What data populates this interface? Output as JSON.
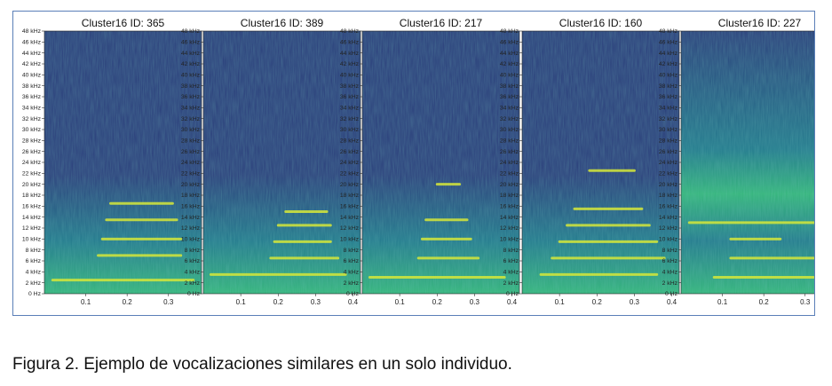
{
  "figure": {
    "caption": "Figura 2. Ejemplo de vocalizaciones similares en un solo individuo."
  },
  "colors": {
    "background_low": "#2a3d7a",
    "mid": "#22798c",
    "high": "#34b57a",
    "harmonic": "#d6e83a",
    "frame_border": "#5b7fb8"
  },
  "chart_data": [
    {
      "type": "heatmap",
      "title": "Cluster16 ID: 365",
      "y_ticks": [
        "0 Hz",
        "2 kHz",
        "4 kHz",
        "6 kHz",
        "8 kHz",
        "10 kHz",
        "12 kHz",
        "14 kHz",
        "16 kHz",
        "18 kHz",
        "20 kHz",
        "22 kHz",
        "24 kHz",
        "26 kHz",
        "28 kHz",
        "30 kHz",
        "32 kHz",
        "34 kHz",
        "36 kHz",
        "38 kHz",
        "40 kHz",
        "42 kHz",
        "44 kHz",
        "46 kHz",
        "48 kHz"
      ],
      "x_ticks": [
        "0.1",
        "0.2",
        "0.3"
      ],
      "xlim": [
        0,
        0.38
      ],
      "ylim_khz": [
        0,
        48
      ],
      "harmonics": [
        {
          "freq_khz": 2.5,
          "t_start": 0.02,
          "t_end": 0.36
        },
        {
          "freq_khz": 7.0,
          "t_start": 0.13,
          "t_end": 0.33
        },
        {
          "freq_khz": 10.0,
          "t_start": 0.14,
          "t_end": 0.33
        },
        {
          "freq_khz": 13.5,
          "t_start": 0.15,
          "t_end": 0.32
        },
        {
          "freq_khz": 16.5,
          "t_start": 0.16,
          "t_end": 0.31
        }
      ]
    },
    {
      "type": "heatmap",
      "title": "Cluster16 ID: 389",
      "y_ticks": [
        "0 Hz",
        "2 kHz",
        "4 kHz",
        "6 kHz",
        "8 kHz",
        "10 kHz",
        "12 kHz",
        "14 kHz",
        "16 kHz",
        "18 kHz",
        "20 kHz",
        "22 kHz",
        "24 kHz",
        "26 kHz",
        "28 kHz",
        "30 kHz",
        "32 kHz",
        "34 kHz",
        "36 kHz",
        "38 kHz",
        "40 kHz",
        "42 kHz",
        "44 kHz",
        "46 kHz",
        "48 kHz"
      ],
      "x_ticks": [
        "0.1",
        "0.2",
        "0.3",
        "0.4"
      ],
      "xlim": [
        0,
        0.42
      ],
      "ylim_khz": [
        0,
        48
      ],
      "harmonics": [
        {
          "freq_khz": 3.5,
          "t_start": 0.02,
          "t_end": 0.38
        },
        {
          "freq_khz": 6.5,
          "t_start": 0.18,
          "t_end": 0.36
        },
        {
          "freq_khz": 9.5,
          "t_start": 0.19,
          "t_end": 0.34
        },
        {
          "freq_khz": 12.5,
          "t_start": 0.2,
          "t_end": 0.34
        },
        {
          "freq_khz": 15.0,
          "t_start": 0.22,
          "t_end": 0.33
        }
      ]
    },
    {
      "type": "heatmap",
      "title": "Cluster16 ID: 217",
      "y_ticks": [
        "0 Hz",
        "2 kHz",
        "4 kHz",
        "6 kHz",
        "8 kHz",
        "10 kHz",
        "12 kHz",
        "14 kHz",
        "16 kHz",
        "18 kHz",
        "20 kHz",
        "22 kHz",
        "24 kHz",
        "26 kHz",
        "28 kHz",
        "30 kHz",
        "32 kHz",
        "34 kHz",
        "36 kHz",
        "38 kHz",
        "40 kHz",
        "42 kHz",
        "44 kHz",
        "46 kHz",
        "48 kHz"
      ],
      "x_ticks": [
        "0.1",
        "0.2",
        "0.3",
        "0.4"
      ],
      "xlim": [
        0,
        0.42
      ],
      "ylim_khz": [
        0,
        48
      ],
      "harmonics": [
        {
          "freq_khz": 3.0,
          "t_start": 0.02,
          "t_end": 0.38
        },
        {
          "freq_khz": 6.5,
          "t_start": 0.15,
          "t_end": 0.31
        },
        {
          "freq_khz": 10.0,
          "t_start": 0.16,
          "t_end": 0.29
        },
        {
          "freq_khz": 13.5,
          "t_start": 0.17,
          "t_end": 0.28
        },
        {
          "freq_khz": 20.0,
          "t_start": 0.2,
          "t_end": 0.26
        }
      ]
    },
    {
      "type": "heatmap",
      "title": "Cluster16 ID: 160",
      "y_ticks": [
        "0 Hz",
        "2 kHz",
        "4 kHz",
        "6 kHz",
        "8 kHz",
        "10 kHz",
        "12 kHz",
        "14 kHz",
        "16 kHz",
        "18 kHz",
        "20 kHz",
        "22 kHz",
        "24 kHz",
        "26 kHz",
        "28 kHz",
        "30 kHz",
        "32 kHz",
        "34 kHz",
        "36 kHz",
        "38 kHz",
        "40 kHz",
        "42 kHz",
        "44 kHz",
        "46 kHz",
        "48 kHz"
      ],
      "x_ticks": [
        "0.1",
        "0.2",
        "0.3",
        "0.4"
      ],
      "xlim": [
        0,
        0.42
      ],
      "ylim_khz": [
        0,
        48
      ],
      "harmonics": [
        {
          "freq_khz": 3.5,
          "t_start": 0.05,
          "t_end": 0.36
        },
        {
          "freq_khz": 6.5,
          "t_start": 0.08,
          "t_end": 0.38
        },
        {
          "freq_khz": 9.5,
          "t_start": 0.1,
          "t_end": 0.36
        },
        {
          "freq_khz": 12.5,
          "t_start": 0.12,
          "t_end": 0.34
        },
        {
          "freq_khz": 15.5,
          "t_start": 0.14,
          "t_end": 0.32
        },
        {
          "freq_khz": 22.5,
          "t_start": 0.18,
          "t_end": 0.3
        }
      ]
    },
    {
      "type": "heatmap",
      "title": "Cluster16 ID: 227",
      "y_ticks": [
        "0 Hz",
        "2 kHz",
        "4 kHz",
        "6 kHz",
        "8 kHz",
        "10 kHz",
        "12 kHz",
        "14 kHz",
        "16 kHz",
        "18 kHz",
        "20 kHz",
        "22 kHz",
        "24 kHz",
        "26 kHz",
        "28 kHz",
        "30 kHz",
        "32 kHz",
        "34 kHz",
        "36 kHz",
        "38 kHz",
        "40 kHz",
        "42 kHz",
        "44 kHz",
        "46 kHz",
        "48 kHz"
      ],
      "x_ticks": [
        "0.1",
        "0.2",
        "0.3"
      ],
      "xlim": [
        0,
        0.38
      ],
      "ylim_khz": [
        0,
        48
      ],
      "harmonics": [
        {
          "freq_khz": 3.0,
          "t_start": 0.08,
          "t_end": 0.32
        },
        {
          "freq_khz": 6.5,
          "t_start": 0.12,
          "t_end": 0.34
        },
        {
          "freq_khz": 10.0,
          "t_start": 0.12,
          "t_end": 0.24
        },
        {
          "freq_khz": 13.0,
          "t_start": 0.02,
          "t_end": 0.38
        }
      ]
    }
  ]
}
